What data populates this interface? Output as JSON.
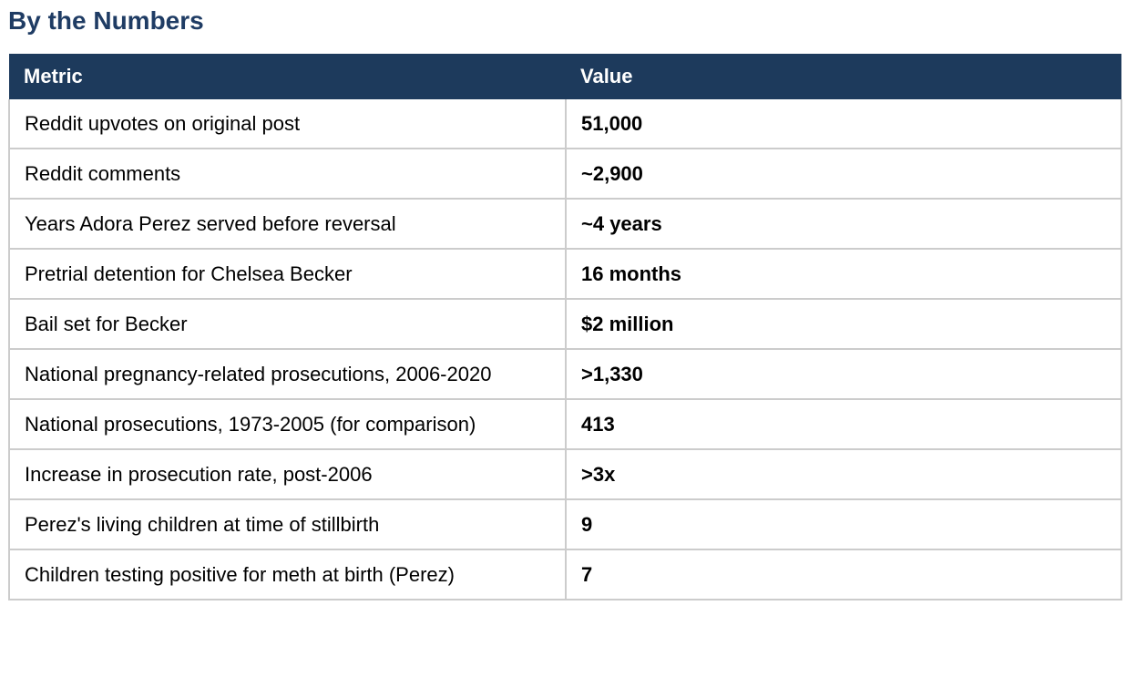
{
  "title": "By the Numbers",
  "colors": {
    "title_color": "#1f3c64",
    "header_bg": "#1d3a5c",
    "header_text": "#ffffff",
    "border_color": "#cccccc",
    "body_text": "#000000",
    "page_bg": "#ffffff"
  },
  "table": {
    "columns": [
      "Metric",
      "Value"
    ],
    "rows": [
      {
        "metric": "Reddit upvotes on original post",
        "value": "51,000"
      },
      {
        "metric": "Reddit comments",
        "value": "~2,900"
      },
      {
        "metric": "Years Adora Perez served before reversal",
        "value": "~4 years"
      },
      {
        "metric": "Pretrial detention for Chelsea Becker",
        "value": "16 months"
      },
      {
        "metric": "Bail set for Becker",
        "value": "$2 million"
      },
      {
        "metric": "National pregnancy-related prosecutions, 2006-2020",
        "value": ">1,330"
      },
      {
        "metric": "National prosecutions, 1973-2005 (for comparison)",
        "value": "413"
      },
      {
        "metric": "Increase in prosecution rate, post-2006",
        "value": ">3x"
      },
      {
        "metric": "Perez's living children at time of stillbirth",
        "value": "9"
      },
      {
        "metric": "Children testing positive for meth at birth (Perez)",
        "value": "7"
      }
    ]
  }
}
